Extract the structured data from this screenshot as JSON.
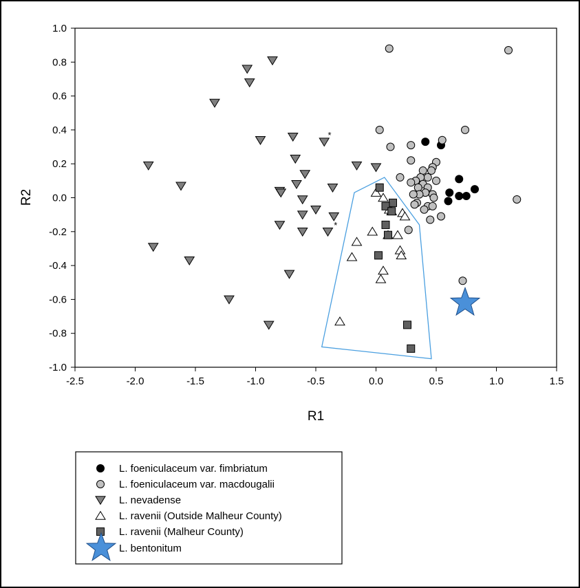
{
  "chart_data": {
    "type": "scatter",
    "title": "",
    "xlabel": "R1",
    "ylabel": "R2",
    "xlim": [
      -2.5,
      1.5
    ],
    "ylim": [
      -1.0,
      1.0
    ],
    "x_ticks": [
      "-2.5",
      "-2.0",
      "-1.5",
      "-1.0",
      "-0.5",
      "0.0",
      "0.5",
      "1.0",
      "1.5"
    ],
    "y_ticks": [
      "1.0",
      "0.8",
      "0.6",
      "0.4",
      "0.2",
      "0.0",
      "-0.2",
      "-0.4",
      "-0.6",
      "-0.8",
      "-1.0"
    ],
    "grid": false,
    "legend_position": "below plot, left",
    "series": [
      {
        "name": "L. foeniculaceum var. fimbriatum",
        "marker": "circle",
        "fill": "#000000",
        "points": [
          [
            0.41,
            0.33
          ],
          [
            0.54,
            0.31
          ],
          [
            0.61,
            0.03
          ],
          [
            0.6,
            -0.02
          ],
          [
            0.69,
            0.11
          ],
          [
            0.69,
            0.01
          ],
          [
            0.75,
            0.01
          ],
          [
            0.82,
            0.05
          ]
        ]
      },
      {
        "name": "L. foeniculaceum var. macdougalii",
        "marker": "circle",
        "fill": "#c0c0c0",
        "points": [
          [
            0.11,
            0.88
          ],
          [
            1.1,
            0.87
          ],
          [
            0.03,
            0.4
          ],
          [
            0.74,
            0.4
          ],
          [
            0.12,
            0.3
          ],
          [
            0.55,
            0.34
          ],
          [
            0.29,
            0.31
          ],
          [
            0.29,
            0.22
          ],
          [
            0.5,
            0.21
          ],
          [
            0.47,
            0.18
          ],
          [
            0.39,
            0.16
          ],
          [
            0.46,
            0.16
          ],
          [
            0.43,
            0.12
          ],
          [
            0.37,
            0.12
          ],
          [
            0.2,
            0.12
          ],
          [
            0.33,
            0.1
          ],
          [
            0.5,
            0.1
          ],
          [
            0.39,
            0.08
          ],
          [
            0.29,
            0.09
          ],
          [
            0.35,
            0.06
          ],
          [
            0.43,
            0.06
          ],
          [
            0.47,
            0.02
          ],
          [
            0.41,
            0.03
          ],
          [
            0.36,
            0.02
          ],
          [
            0.31,
            0.02
          ],
          [
            0.34,
            -0.03
          ],
          [
            0.48,
            0.0
          ],
          [
            0.32,
            -0.04
          ],
          [
            0.43,
            -0.05
          ],
          [
            0.47,
            -0.05
          ],
          [
            0.4,
            -0.07
          ],
          [
            0.54,
            -0.11
          ],
          [
            0.45,
            -0.13
          ],
          [
            0.27,
            -0.19
          ],
          [
            1.17,
            -0.01
          ],
          [
            0.72,
            -0.49
          ]
        ]
      },
      {
        "name": "L. nevadense",
        "marker": "triangle-down",
        "fill": "#808080",
        "points": [
          [
            -0.86,
            0.81
          ],
          [
            -1.07,
            0.76
          ],
          [
            -1.05,
            0.68
          ],
          [
            -1.34,
            0.56
          ],
          [
            -0.69,
            0.36
          ],
          [
            -0.96,
            0.34
          ],
          [
            -0.43,
            0.33
          ],
          [
            -0.67,
            0.23
          ],
          [
            -1.89,
            0.19
          ],
          [
            -0.16,
            0.19
          ],
          [
            -0.59,
            0.14
          ],
          [
            0.0,
            0.18
          ],
          [
            -1.62,
            0.07
          ],
          [
            -0.8,
            0.04
          ],
          [
            -0.66,
            0.08
          ],
          [
            -0.36,
            0.06
          ],
          [
            -0.79,
            0.03
          ],
          [
            -0.61,
            -0.01
          ],
          [
            -0.5,
            -0.07
          ],
          [
            -0.61,
            -0.1
          ],
          [
            -0.35,
            -0.11
          ],
          [
            -0.8,
            -0.16
          ],
          [
            -0.61,
            -0.2
          ],
          [
            -0.4,
            -0.2
          ],
          [
            -1.85,
            -0.29
          ],
          [
            -1.55,
            -0.37
          ],
          [
            -0.72,
            -0.45
          ],
          [
            -1.22,
            -0.6
          ],
          [
            -0.89,
            -0.75
          ]
        ]
      },
      {
        "name": "L. ravenii (Outside Malheur County)",
        "marker": "triangle-up",
        "fill": "#ffffff",
        "points": [
          [
            0.0,
            0.03
          ],
          [
            0.06,
            0.0
          ],
          [
            0.11,
            -0.07
          ],
          [
            0.13,
            -0.08
          ],
          [
            0.22,
            -0.09
          ],
          [
            0.24,
            -0.11
          ],
          [
            -0.03,
            -0.2
          ],
          [
            0.18,
            -0.22
          ],
          [
            0.1,
            -0.22
          ],
          [
            -0.16,
            -0.26
          ],
          [
            0.2,
            -0.31
          ],
          [
            -0.2,
            -0.35
          ],
          [
            0.21,
            -0.34
          ],
          [
            0.06,
            -0.43
          ],
          [
            0.04,
            -0.48
          ],
          [
            -0.3,
            -0.73
          ]
        ]
      },
      {
        "name": "L. ravenii (Malheur County)",
        "marker": "square",
        "fill": "#606060",
        "points": [
          [
            0.03,
            0.06
          ],
          [
            0.14,
            -0.03
          ],
          [
            0.08,
            -0.05
          ],
          [
            0.13,
            -0.08
          ],
          [
            0.08,
            -0.16
          ],
          [
            0.1,
            -0.22
          ],
          [
            0.02,
            -0.34
          ],
          [
            0.26,
            -0.75
          ],
          [
            0.29,
            -0.89
          ]
        ]
      },
      {
        "name": "L. bentonitum",
        "marker": "star",
        "fill": "#4a90d9",
        "points": [
          [
            0.74,
            -0.62
          ]
        ]
      }
    ],
    "annotations": [
      {
        "text": "*",
        "x": -0.4,
        "y": 0.35
      },
      {
        "text": "*",
        "x": -0.35,
        "y": -0.18
      }
    ],
    "hull_polygon": {
      "color": "#4a9fe0",
      "points": [
        [
          -0.18,
          0.03
        ],
        [
          0.07,
          0.12
        ],
        [
          0.36,
          -0.16
        ],
        [
          0.46,
          -0.95
        ],
        [
          -0.45,
          -0.88
        ]
      ]
    }
  }
}
